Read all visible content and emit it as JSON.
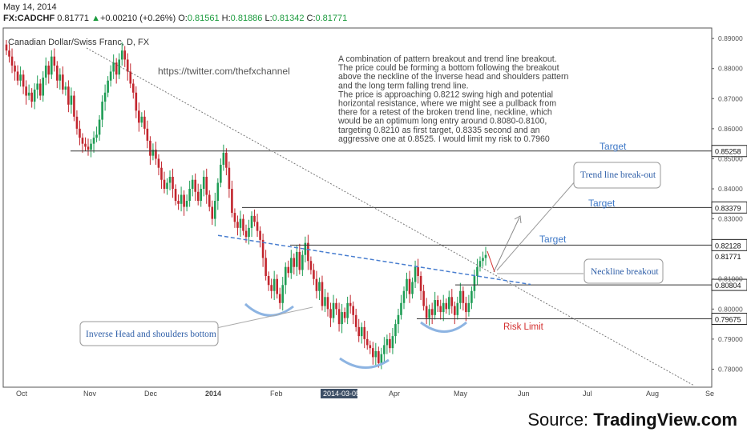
{
  "header": {
    "date": "May 14, 2014",
    "symbol": "FX:CADCHF",
    "last": "0.81771",
    "change": "+0.00210 (+0.26%)",
    "o_label": "O:",
    "o": "0.81561",
    "h_label": "H:",
    "h": "0.81886",
    "l_label": "L:",
    "l": "0.81342",
    "c_label": "C:",
    "c": "0.81771",
    "up_icon": "triangle-up-icon",
    "up_color": "#1a9a3c"
  },
  "chart_title": "Canadian Dollar/Swiss Franc, D, FX",
  "watermark_url": "https://twitter.com/thefxchannel",
  "note_lines": [
    "A combination of pattern breakout and trend line breakout.",
    "The price could be forming a bottom following the breakout",
    "above the neckline of the Inverse head and shoulders pattern",
    "and the long term falling trend line.",
    "The price is approaching 0.8212 swing high and potential",
    "horizontal resistance, where we might see a pullback from",
    "there for a retest of the broken trend line, neckline, which",
    "would be an optimum long entry around 0.8080-0.8100,",
    "targeting 0.8210 as first target, 0.8335 second and an",
    "aggressive one at 0.8525. I would limit my risk to 0.7960"
  ],
  "annotations": {
    "trendline_breakout": "Trend line break-out",
    "neckline_breakout": "Neckline breakout",
    "inverse_hs": "Inverse Head and shoulders bottom",
    "target1": "Target",
    "target2": "Target",
    "target3": "Target",
    "risk": "Risk Limit"
  },
  "source_prefix": "Source: ",
  "source_brand": "TradingView.com",
  "colors": {
    "up": "#1f9d55",
    "down": "#c2262e",
    "neckline": "#4a7fd0",
    "risk": "#d32f2f",
    "target": "#3e78c7",
    "level_box": "#222222"
  },
  "chart_data": {
    "type": "candlestick",
    "title": "Canadian Dollar/Swiss Franc, D, FX",
    "x_ticks": [
      "Oct",
      "Nov",
      "Dec",
      "2014",
      "Feb",
      "2014-03-05",
      "Apr",
      "May",
      "Jun",
      "Jul",
      "Aug",
      "Se"
    ],
    "y_ticks": [
      "0.89000",
      "0.88000",
      "0.87000",
      "0.86000",
      "0.85000",
      "0.84000",
      "0.83000",
      "0.81000",
      "0.80000",
      "0.79000",
      "0.78000"
    ],
    "ylim": [
      0.774,
      0.8935
    ],
    "price_levels": [
      "0.85258",
      "0.83379",
      "0.82128",
      "0.81771",
      "0.80804",
      "0.79675"
    ],
    "series": [
      {
        "name": "CADCHF",
        "close": [
          0.886,
          0.884,
          0.881,
          0.879,
          0.876,
          0.878,
          0.874,
          0.871,
          0.872,
          0.869,
          0.873,
          0.875,
          0.871,
          0.877,
          0.881,
          0.878,
          0.884,
          0.881,
          0.876,
          0.878,
          0.873,
          0.874,
          0.868,
          0.871,
          0.864,
          0.86,
          0.857,
          0.855,
          0.854,
          0.853,
          0.855,
          0.857,
          0.858,
          0.863,
          0.869,
          0.872,
          0.876,
          0.879,
          0.882,
          0.878,
          0.883,
          0.886,
          0.883,
          0.879,
          0.875,
          0.872,
          0.866,
          0.862,
          0.864,
          0.86,
          0.856,
          0.851,
          0.853,
          0.85,
          0.847,
          0.843,
          0.84,
          0.842,
          0.844,
          0.84,
          0.836,
          0.835,
          0.838,
          0.834,
          0.836,
          0.84,
          0.843,
          0.839,
          0.836,
          0.84,
          0.844,
          0.838,
          0.834,
          0.83,
          0.836,
          0.842,
          0.848,
          0.852,
          0.847,
          0.84,
          0.832,
          0.829,
          0.827,
          0.83,
          0.826,
          0.824,
          0.827,
          0.831,
          0.829,
          0.826,
          0.823,
          0.817,
          0.811,
          0.808,
          0.806,
          0.81,
          0.805,
          0.802,
          0.808,
          0.814,
          0.812,
          0.817,
          0.814,
          0.819,
          0.813,
          0.818,
          0.822,
          0.816,
          0.813,
          0.81,
          0.806,
          0.809,
          0.801,
          0.804,
          0.8,
          0.797,
          0.802,
          0.8,
          0.795,
          0.799,
          0.797,
          0.802,
          0.801,
          0.798,
          0.794,
          0.791,
          0.794,
          0.79,
          0.788,
          0.787,
          0.784,
          0.786,
          0.782,
          0.785,
          0.788,
          0.79,
          0.787,
          0.791,
          0.795,
          0.798,
          0.802,
          0.806,
          0.81,
          0.805,
          0.809,
          0.814,
          0.811,
          0.806,
          0.801,
          0.797,
          0.8,
          0.798,
          0.803,
          0.801,
          0.799,
          0.802,
          0.8,
          0.804,
          0.801,
          0.798,
          0.802,
          0.806,
          0.802,
          0.799,
          0.802,
          0.806,
          0.811,
          0.814,
          0.816,
          0.817,
          0.818
        ]
      }
    ]
  }
}
